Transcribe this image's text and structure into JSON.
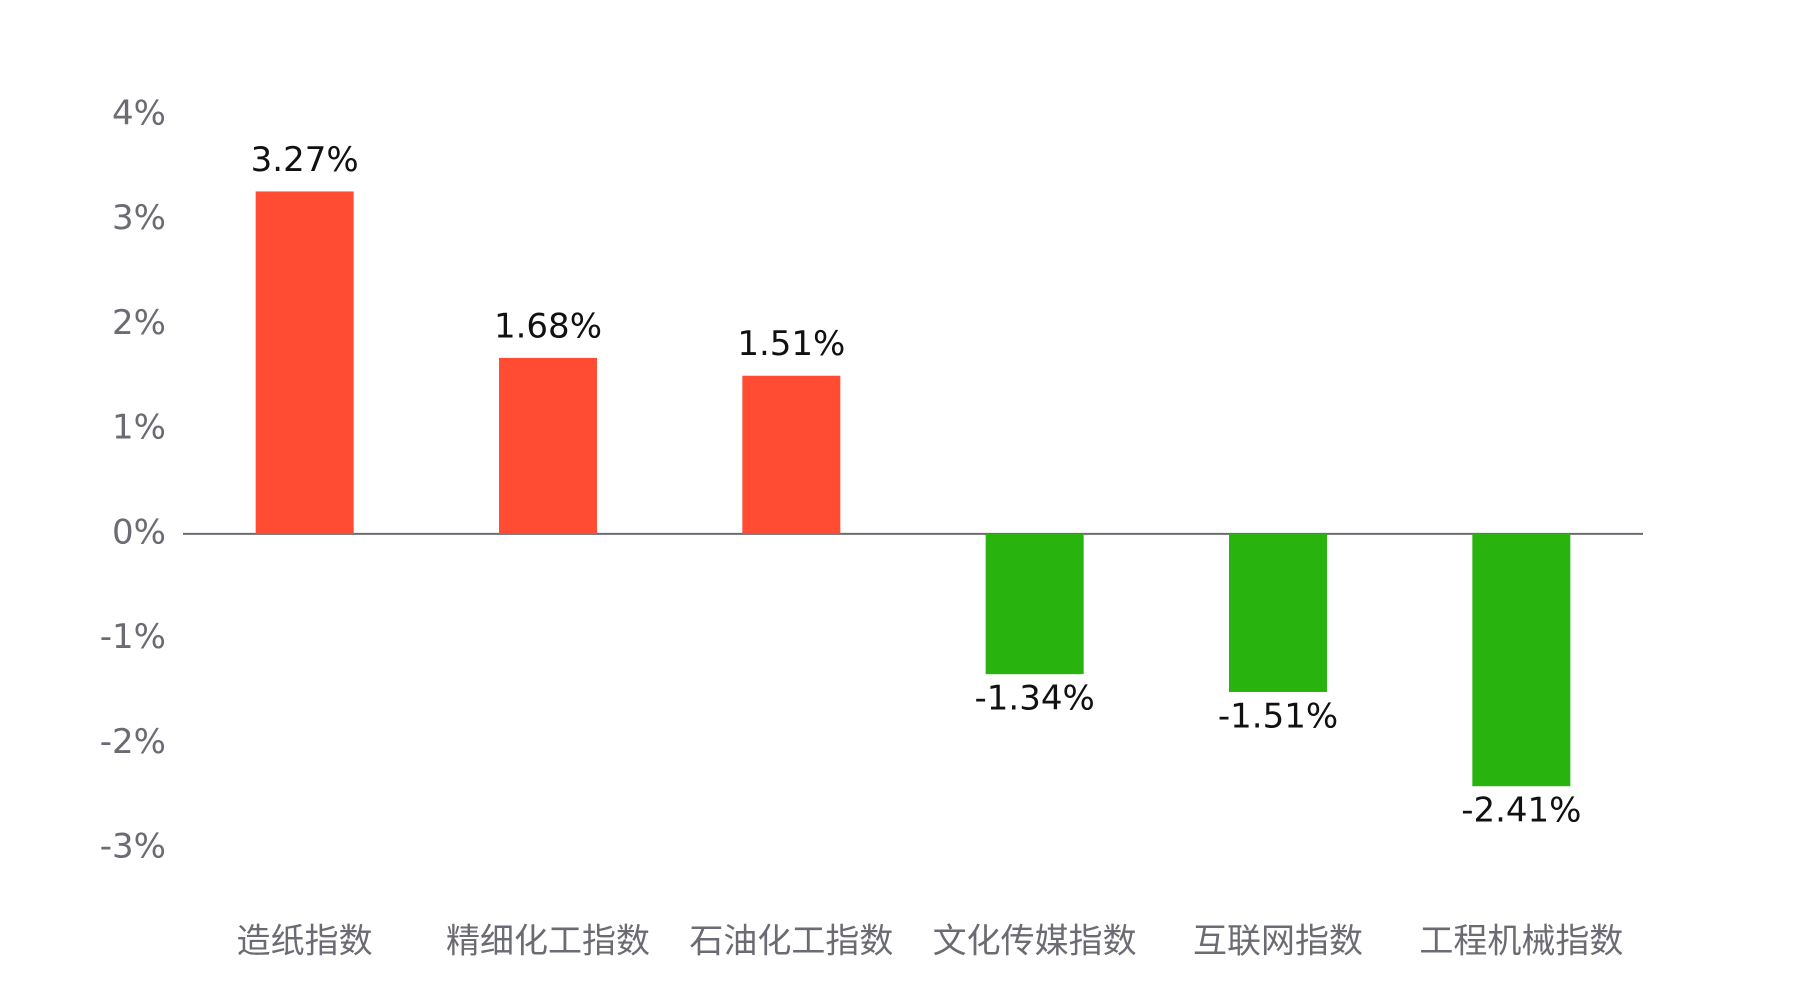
{
  "chart_data": {
    "type": "bar",
    "categories": [
      "造纸指数",
      "精细化工指数",
      "石油化工指数",
      "文化传媒指数",
      "互联网指数",
      "工程机械指数"
    ],
    "values": [
      3.27,
      1.68,
      1.51,
      -1.34,
      -1.51,
      -2.41
    ],
    "value_labels": [
      "3.27%",
      "1.68%",
      "1.51%",
      "-1.34%",
      "-1.51%",
      "-2.41%"
    ],
    "colors": [
      "#ff4c33",
      "#ff4c33",
      "#ff4c33",
      "#28b30f",
      "#28b30f",
      "#28b30f"
    ],
    "ylim": [
      -3,
      4
    ],
    "yticks": [
      {
        "value": -3,
        "label": "-3%"
      },
      {
        "value": -2,
        "label": "-2%"
      },
      {
        "value": -1,
        "label": "-1%"
      },
      {
        "value": 0,
        "label": "0%"
      },
      {
        "value": 1,
        "label": "1%"
      },
      {
        "value": 2,
        "label": "2%"
      },
      {
        "value": 3,
        "label": "3%"
      },
      {
        "value": 4,
        "label": "4%"
      }
    ],
    "grid": false
  }
}
